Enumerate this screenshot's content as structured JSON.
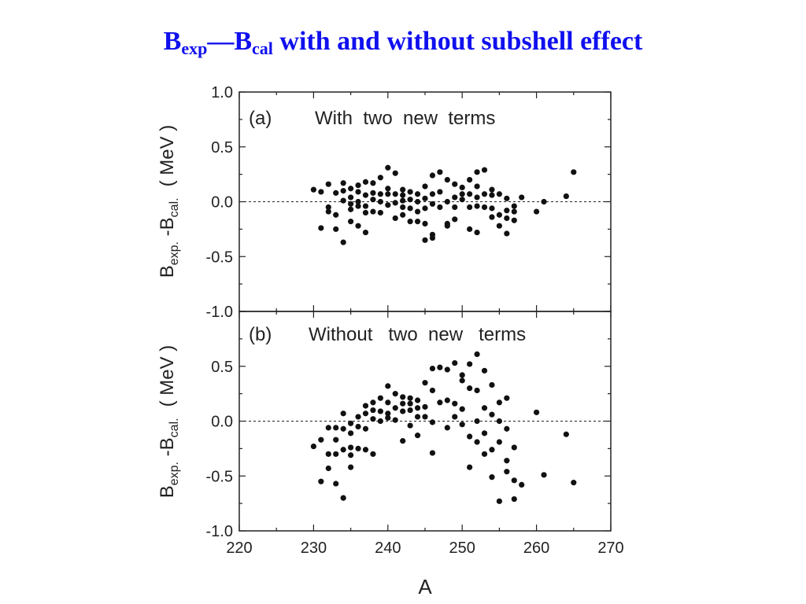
{
  "title": {
    "main": "B",
    "sub1": "exp",
    "dash": "—B",
    "sub2": "cal",
    "rest": " with and without subshell effect",
    "color": "#1010ee"
  },
  "chart_data": [
    {
      "type": "scatter",
      "panel_label": "(a)",
      "annotation": "With  two  new  terms",
      "ylabel": {
        "main": "B",
        "sub1": "exp.",
        "mid": " -B",
        "sub2": "cal.",
        "unit": "( MeV )"
      },
      "xlim": [
        220,
        270
      ],
      "ylim": [
        -1.0,
        1.0
      ],
      "y_ticks": [
        "1.0",
        "0.5",
        "0.0",
        "-0.5",
        "-1.0"
      ],
      "y_tick_values": [
        1.0,
        0.5,
        0.0,
        -0.5,
        -1.0
      ],
      "reference_line": 0.0,
      "points": [
        [
          230,
          0.11
        ],
        [
          231,
          0.09
        ],
        [
          231,
          -0.24
        ],
        [
          232,
          0.16
        ],
        [
          232,
          -0.05
        ],
        [
          232,
          -0.09
        ],
        [
          233,
          0.08
        ],
        [
          233,
          -0.12
        ],
        [
          233,
          -0.25
        ],
        [
          234,
          0.17
        ],
        [
          234,
          0.1
        ],
        [
          234,
          0.01
        ],
        [
          234,
          -0.37
        ],
        [
          235,
          0.12
        ],
        [
          235,
          0.04
        ],
        [
          235,
          -0.02
        ],
        [
          235,
          -0.07
        ],
        [
          235,
          -0.18
        ],
        [
          236,
          0.15
        ],
        [
          236,
          0.09
        ],
        [
          236,
          0.0
        ],
        [
          236,
          -0.04
        ],
        [
          236,
          -0.22
        ],
        [
          237,
          0.18
        ],
        [
          237,
          0.06
        ],
        [
          237,
          -0.04
        ],
        [
          237,
          -0.1
        ],
        [
          237,
          -0.28
        ],
        [
          238,
          0.17
        ],
        [
          238,
          0.08
        ],
        [
          238,
          0.02
        ],
        [
          238,
          -0.09
        ],
        [
          239,
          0.22
        ],
        [
          239,
          0.07
        ],
        [
          239,
          0.0
        ],
        [
          239,
          -0.1
        ],
        [
          240,
          0.31
        ],
        [
          240,
          0.12
        ],
        [
          240,
          0.07
        ],
        [
          240,
          -0.03
        ],
        [
          241,
          0.26
        ],
        [
          241,
          0.07
        ],
        [
          241,
          -0.01
        ],
        [
          241,
          -0.15
        ],
        [
          242,
          0.11
        ],
        [
          242,
          0.06
        ],
        [
          242,
          0.01
        ],
        [
          242,
          -0.05
        ],
        [
          242,
          -0.12
        ],
        [
          243,
          0.09
        ],
        [
          243,
          0.02
        ],
        [
          243,
          -0.06
        ],
        [
          243,
          -0.18
        ],
        [
          244,
          0.07
        ],
        [
          244,
          0.0
        ],
        [
          244,
          -0.09
        ],
        [
          244,
          -0.18
        ],
        [
          245,
          0.14
        ],
        [
          245,
          0.03
        ],
        [
          245,
          -0.06
        ],
        [
          245,
          -0.2
        ],
        [
          245,
          -0.35
        ],
        [
          246,
          0.24
        ],
        [
          246,
          0.07
        ],
        [
          246,
          -0.02
        ],
        [
          246,
          -0.3
        ],
        [
          246,
          -0.33
        ],
        [
          247,
          0.27
        ],
        [
          247,
          0.09
        ],
        [
          247,
          -0.05
        ],
        [
          248,
          0.2
        ],
        [
          248,
          0.0
        ],
        [
          248,
          -0.2
        ],
        [
          248,
          -0.22
        ],
        [
          249,
          0.16
        ],
        [
          249,
          0.04
        ],
        [
          249,
          -0.05
        ],
        [
          249,
          -0.16
        ],
        [
          250,
          0.13
        ],
        [
          250,
          0.07
        ],
        [
          250,
          0.02
        ],
        [
          251,
          0.2
        ],
        [
          251,
          0.07
        ],
        [
          251,
          -0.05
        ],
        [
          251,
          -0.25
        ],
        [
          252,
          0.27
        ],
        [
          252,
          0.14
        ],
        [
          252,
          0.04
        ],
        [
          252,
          -0.04
        ],
        [
          252,
          -0.28
        ],
        [
          253,
          0.29
        ],
        [
          253,
          0.07
        ],
        [
          253,
          -0.05
        ],
        [
          254,
          0.11
        ],
        [
          254,
          0.06
        ],
        [
          254,
          -0.06
        ],
        [
          254,
          -0.14
        ],
        [
          255,
          0.07
        ],
        [
          255,
          -0.12
        ],
        [
          255,
          -0.22
        ],
        [
          256,
          0.03
        ],
        [
          256,
          -0.08
        ],
        [
          256,
          -0.15
        ],
        [
          256,
          -0.29
        ],
        [
          257,
          -0.04
        ],
        [
          257,
          -0.09
        ],
        [
          257,
          -0.17
        ],
        [
          258,
          0.04
        ],
        [
          260,
          -0.09
        ],
        [
          261,
          0.0
        ],
        [
          264,
          0.05
        ],
        [
          265,
          0.27
        ]
      ]
    },
    {
      "type": "scatter",
      "panel_label": "(b)",
      "annotation": "Without   two  new   terms",
      "ylabel": {
        "main": "B",
        "sub1": "exp.",
        "mid": " -B",
        "sub2": "cal.",
        "unit": "( MeV )"
      },
      "xlim": [
        220,
        270
      ],
      "ylim": [
        -1.0,
        1.0
      ],
      "y_ticks": [
        "0.5",
        "0.0",
        "-0.5",
        "-1.0"
      ],
      "y_tick_values": [
        0.5,
        0.0,
        -0.5,
        -1.0
      ],
      "x_ticks": [
        "220",
        "230",
        "240",
        "250",
        "260",
        "270"
      ],
      "x_tick_values": [
        220,
        230,
        240,
        250,
        260,
        270
      ],
      "xlabel": "A",
      "reference_line": 0.0,
      "points": [
        [
          230,
          -0.23
        ],
        [
          231,
          -0.17
        ],
        [
          231,
          -0.55
        ],
        [
          232,
          -0.06
        ],
        [
          232,
          -0.3
        ],
        [
          232,
          -0.43
        ],
        [
          233,
          -0.06
        ],
        [
          233,
          -0.17
        ],
        [
          233,
          -0.3
        ],
        [
          233,
          -0.57
        ],
        [
          234,
          0.07
        ],
        [
          234,
          -0.07
        ],
        [
          234,
          -0.26
        ],
        [
          234,
          -0.7
        ],
        [
          235,
          -0.02
        ],
        [
          235,
          -0.11
        ],
        [
          235,
          -0.24
        ],
        [
          235,
          -0.31
        ],
        [
          235,
          -0.42
        ],
        [
          236,
          0.04
        ],
        [
          236,
          -0.05
        ],
        [
          236,
          -0.25
        ],
        [
          237,
          0.14
        ],
        [
          237,
          0.07
        ],
        [
          237,
          -0.07
        ],
        [
          237,
          -0.26
        ],
        [
          238,
          0.17
        ],
        [
          238,
          0.1
        ],
        [
          238,
          0.02
        ],
        [
          238,
          -0.3
        ],
        [
          239,
          0.21
        ],
        [
          239,
          0.09
        ],
        [
          239,
          0.0
        ],
        [
          240,
          0.32
        ],
        [
          240,
          0.17
        ],
        [
          240,
          0.07
        ],
        [
          240,
          0.03
        ],
        [
          241,
          0.25
        ],
        [
          241,
          0.12
        ],
        [
          241,
          0.01
        ],
        [
          242,
          0.22
        ],
        [
          242,
          0.16
        ],
        [
          242,
          0.09
        ],
        [
          242,
          -0.18
        ],
        [
          243,
          0.21
        ],
        [
          243,
          0.16
        ],
        [
          243,
          0.1
        ],
        [
          243,
          -0.04
        ],
        [
          244,
          0.19
        ],
        [
          244,
          0.12
        ],
        [
          244,
          0.04
        ],
        [
          244,
          -0.13
        ],
        [
          245,
          0.35
        ],
        [
          245,
          0.13
        ],
        [
          245,
          0.04
        ],
        [
          246,
          0.48
        ],
        [
          246,
          0.28
        ],
        [
          246,
          -0.01
        ],
        [
          246,
          -0.29
        ],
        [
          247,
          0.49
        ],
        [
          247,
          0.17
        ],
        [
          248,
          0.47
        ],
        [
          248,
          0.19
        ],
        [
          248,
          -0.06
        ],
        [
          249,
          0.53
        ],
        [
          249,
          0.16
        ],
        [
          249,
          0.04
        ],
        [
          250,
          0.42
        ],
        [
          250,
          0.37
        ],
        [
          250,
          0.11
        ],
        [
          250,
          -0.03
        ],
        [
          251,
          0.52
        ],
        [
          251,
          0.3
        ],
        [
          251,
          -0.14
        ],
        [
          251,
          -0.42
        ],
        [
          252,
          0.61
        ],
        [
          252,
          0.28
        ],
        [
          252,
          0.0
        ],
        [
          252,
          -0.19
        ],
        [
          253,
          0.46
        ],
        [
          253,
          0.12
        ],
        [
          253,
          -0.11
        ],
        [
          253,
          -0.3
        ],
        [
          254,
          0.33
        ],
        [
          254,
          0.06
        ],
        [
          254,
          -0.26
        ],
        [
          254,
          -0.51
        ],
        [
          255,
          0.17
        ],
        [
          255,
          0.0
        ],
        [
          255,
          -0.19
        ],
        [
          255,
          -0.73
        ],
        [
          256,
          0.21
        ],
        [
          256,
          -0.07
        ],
        [
          256,
          -0.36
        ],
        [
          256,
          -0.46
        ],
        [
          257,
          -0.24
        ],
        [
          257,
          -0.54
        ],
        [
          257,
          -0.71
        ],
        [
          258,
          -0.58
        ],
        [
          260,
          0.08
        ],
        [
          261,
          -0.49
        ],
        [
          264,
          -0.12
        ],
        [
          265,
          -0.56
        ]
      ]
    }
  ]
}
